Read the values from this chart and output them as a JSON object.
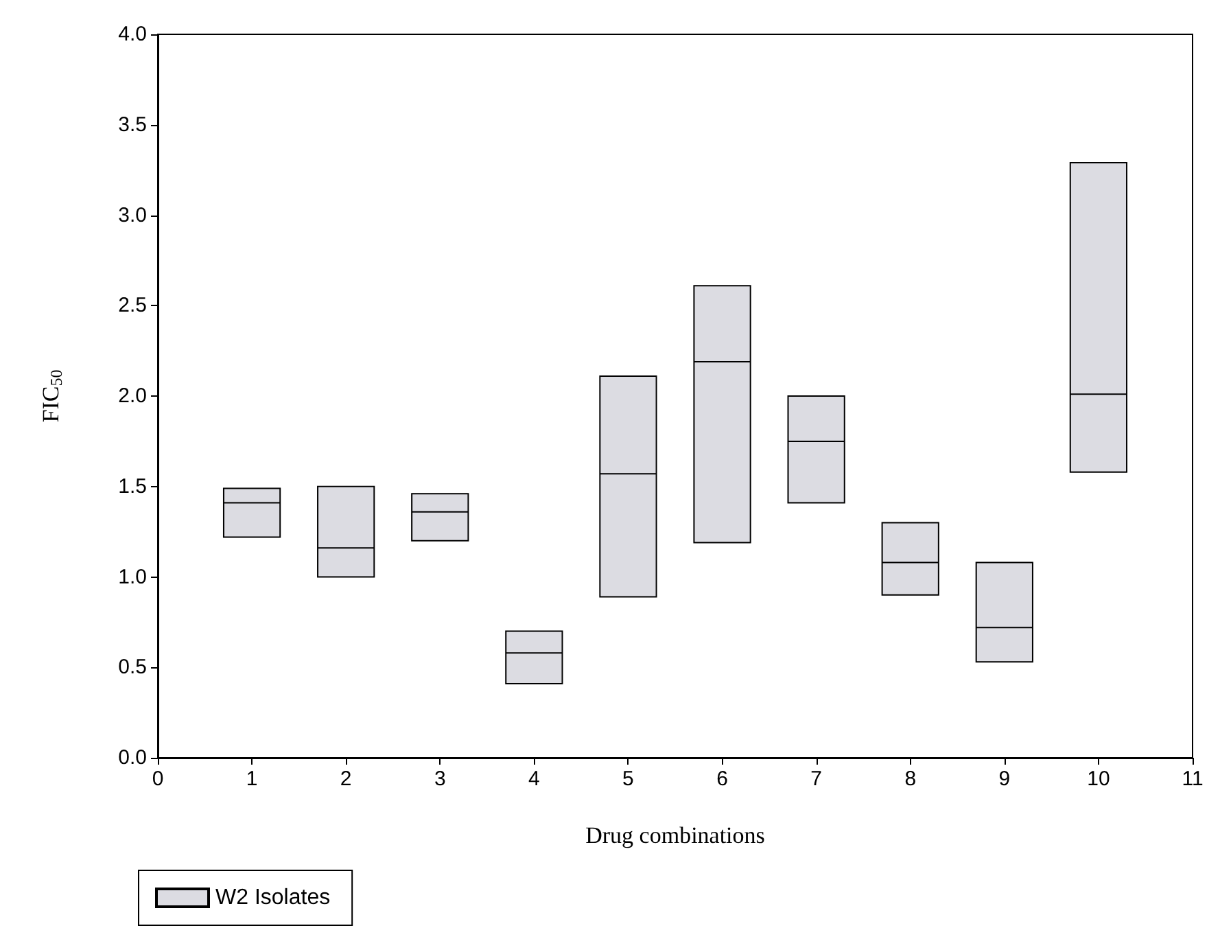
{
  "chart_data": {
    "type": "box",
    "xlabel": "Drug combinations",
    "ylabel": "FIC$_{50}$",
    "x": [
      1,
      2,
      3,
      4,
      5,
      6,
      7,
      8,
      9,
      10
    ],
    "xlim": [
      0,
      11
    ],
    "xticks": [
      0,
      1,
      2,
      3,
      4,
      5,
      6,
      7,
      8,
      9,
      10,
      11
    ],
    "ylim": [
      0,
      4
    ],
    "yticks": [
      {
        "value": 0,
        "label": "0.0"
      },
      {
        "value": 0.5,
        "label": "0.5"
      },
      {
        "value": 1,
        "label": "1.0"
      },
      {
        "value": 1.5,
        "label": "1.5"
      },
      {
        "value": 2,
        "label": "2.0"
      },
      {
        "value": 2.5,
        "label": "2.5"
      },
      {
        "value": 3,
        "label": "3.0"
      },
      {
        "value": 3.5,
        "label": "3.5"
      },
      {
        "value": 4,
        "label": "4.0"
      }
    ],
    "grid": false,
    "legend": "bottom left",
    "series": [
      {
        "name": "W2 Isolates",
        "color": "#dcdce2",
        "boxes": [
          {
            "low": 1.22,
            "q1": 1.22,
            "median": 1.41,
            "q3": 1.49,
            "high": 1.49
          },
          {
            "low": 1.0,
            "q1": 1.0,
            "median": 1.16,
            "q3": 1.5,
            "high": 1.5
          },
          {
            "low": 1.2,
            "q1": 1.2,
            "median": 1.36,
            "q3": 1.46,
            "high": 1.46
          },
          {
            "low": 0.41,
            "q1": 0.41,
            "median": 0.58,
            "q3": 0.7,
            "high": 0.7
          },
          {
            "low": 0.89,
            "q1": 0.89,
            "median": 1.57,
            "q3": 2.11,
            "high": 2.11
          },
          {
            "low": 1.19,
            "q1": 1.19,
            "median": 2.19,
            "q3": 2.61,
            "high": 2.61
          },
          {
            "low": 1.41,
            "q1": 1.41,
            "median": 1.75,
            "q3": 2.0,
            "high": 2.0
          },
          {
            "low": 0.9,
            "q1": 0.9,
            "median": 1.08,
            "q3": 1.3,
            "high": 1.3
          },
          {
            "low": 0.53,
            "q1": 0.53,
            "median": 0.72,
            "q3": 1.08,
            "high": 1.08
          },
          {
            "low": 1.58,
            "q1": 1.58,
            "median": 2.01,
            "q3": 3.29,
            "high": 3.29
          }
        ]
      }
    ]
  }
}
